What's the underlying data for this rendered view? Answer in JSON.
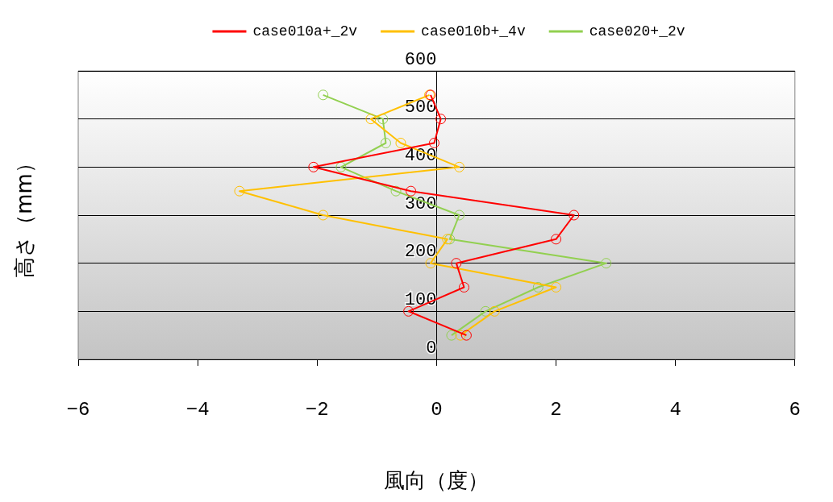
{
  "chart_data": {
    "type": "line",
    "xlabel": "風向（度）",
    "ylabel": "高さ（mm）",
    "xlim": [
      -6,
      6
    ],
    "xticks": [
      -6,
      -4,
      -2,
      0,
      2,
      4,
      6
    ],
    "ylim": [
      0,
      600
    ],
    "yticks": [
      0,
      100,
      200,
      300,
      400,
      500,
      600
    ],
    "grid": "y",
    "legend": "top",
    "marker": "circle",
    "line_style": "solid",
    "series": [
      {
        "name": "case010a+_2v",
        "color": "#ff0000",
        "x": [
          0.5,
          -0.47,
          0.46,
          0.33,
          2.0,
          2.3,
          -0.43,
          -2.06,
          -0.04,
          0.07,
          -0.1
        ],
        "values": [
          50,
          100,
          150,
          200,
          250,
          300,
          350,
          400,
          450,
          500,
          550
        ]
      },
      {
        "name": "case010b+_4v",
        "color": "#ffc000",
        "x": [
          0.4,
          0.97,
          2.0,
          -0.1,
          0.18,
          -1.9,
          -3.3,
          0.38,
          -0.6,
          -1.1,
          -0.12
        ],
        "values": [
          50,
          100,
          150,
          200,
          250,
          300,
          350,
          400,
          450,
          500,
          550
        ]
      },
      {
        "name": "case020+_2v",
        "color": "#92d050",
        "x": [
          0.25,
          0.82,
          1.7,
          2.84,
          0.22,
          0.38,
          -0.68,
          -1.6,
          -0.85,
          -0.9,
          -1.9
        ],
        "values": [
          50,
          100,
          150,
          200,
          250,
          300,
          350,
          400,
          450,
          500,
          550
        ]
      }
    ]
  }
}
